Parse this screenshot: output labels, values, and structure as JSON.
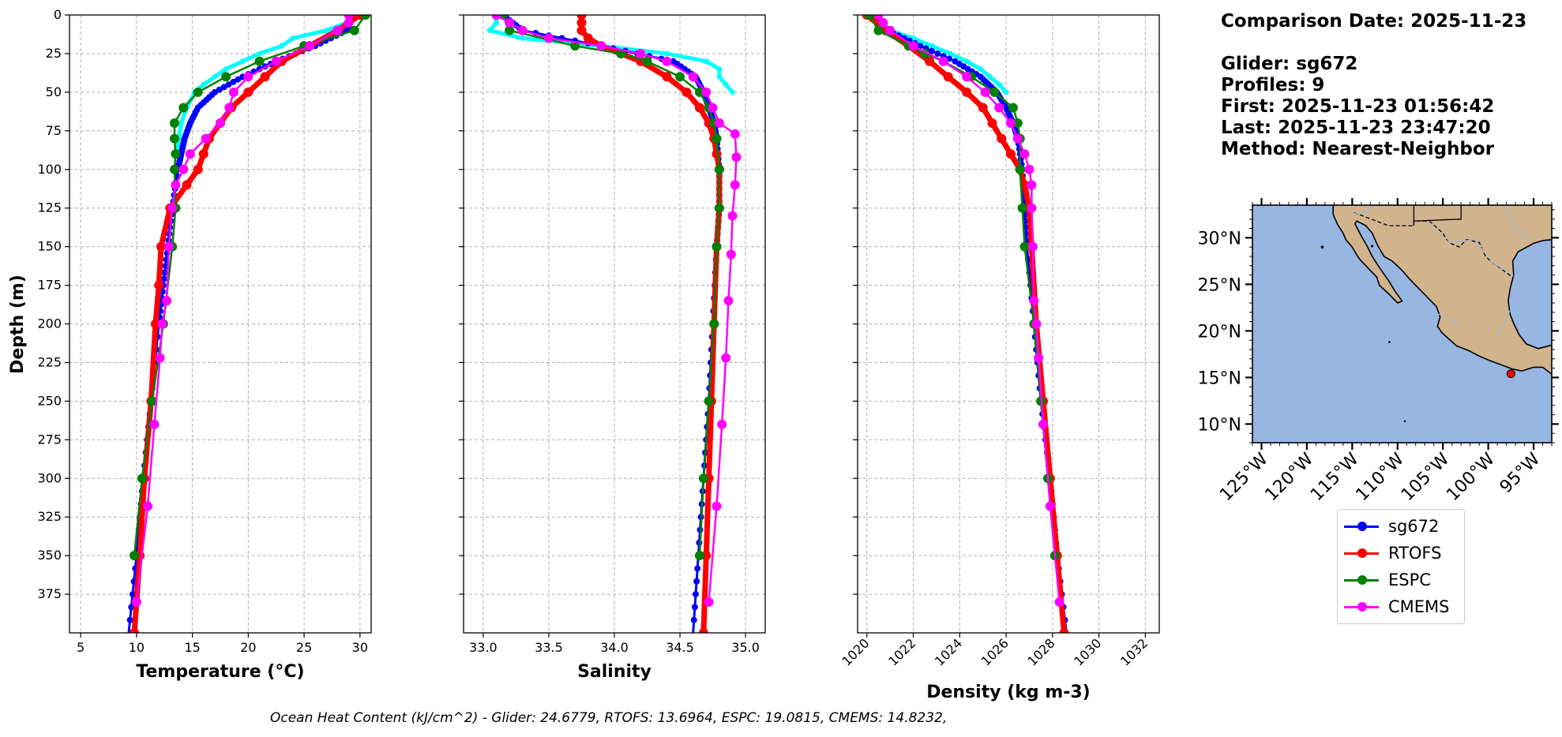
{
  "chart_data": [
    {
      "type": "line",
      "xlabel": "Temperature (°C)",
      "ylabel": "Depth (m)",
      "xlim": [
        4,
        31
      ],
      "ylim": [
        400,
        0
      ],
      "xticks": [
        "5",
        "10",
        "15",
        "20",
        "25",
        "30"
      ],
      "yticks": [
        "0",
        "25",
        "50",
        "75",
        "100",
        "125",
        "150",
        "175",
        "200",
        "225",
        "250",
        "275",
        "300",
        "325",
        "350",
        "375"
      ],
      "grid": true,
      "series": [
        {
          "name": "sg672 (individual profiles)",
          "depth": [
            0,
            5,
            10,
            15,
            20,
            25,
            30,
            35,
            40,
            45,
            50,
            60,
            70,
            80,
            90
          ],
          "values": [
            29.5,
            28.8,
            27.0,
            24.0,
            23.0,
            21.0,
            19.5,
            18.0,
            17.0,
            16.0,
            15.2,
            14.5,
            14.0,
            13.8,
            13.6
          ]
        },
        {
          "name": "sg672",
          "depth": [
            0,
            10,
            20,
            30,
            40,
            50,
            60,
            70,
            80,
            90,
            100,
            125,
            150,
            175,
            200,
            250,
            300,
            350,
            400
          ],
          "values": [
            29.5,
            28.8,
            26.0,
            22.5,
            19.5,
            17.0,
            15.5,
            14.8,
            14.3,
            14.0,
            13.7,
            13.2,
            12.8,
            12.4,
            12.0,
            11.3,
            10.6,
            10.0,
            9.3
          ]
        },
        {
          "name": "RTOFS",
          "depth": [
            0,
            10,
            20,
            30,
            40,
            50,
            60,
            70,
            80,
            90,
            100,
            110,
            125,
            150,
            175,
            200,
            250,
            300,
            350,
            400
          ],
          "values": [
            30.0,
            28.0,
            25.5,
            23.0,
            21.5,
            20.0,
            18.5,
            17.5,
            16.5,
            16.0,
            15.5,
            14.5,
            13.0,
            12.2,
            12.0,
            11.7,
            11.3,
            10.7,
            10.3,
            9.8
          ]
        },
        {
          "name": "ESPC",
          "depth": [
            0,
            10,
            20,
            30,
            40,
            50,
            60,
            70,
            80,
            90,
            100,
            125,
            150,
            200,
            250,
            300,
            350
          ],
          "values": [
            30.5,
            29.5,
            25.0,
            21.0,
            18.0,
            15.5,
            14.2,
            13.4,
            13.4,
            13.5,
            13.4,
            13.5,
            13.2,
            12.4,
            11.4,
            10.5,
            9.8
          ]
        },
        {
          "name": "CMEMS",
          "depth": [
            0,
            5,
            10,
            20,
            30,
            40,
            50,
            60,
            70,
            80,
            90,
            100,
            110,
            125,
            150,
            185,
            200,
            222,
            265,
            318,
            380
          ],
          "values": [
            29.0,
            29.0,
            28.0,
            25.5,
            22.5,
            20.0,
            18.7,
            18.3,
            17.5,
            16.2,
            14.8,
            14.2,
            13.5,
            13.2,
            12.9,
            12.7,
            12.3,
            12.1,
            11.6,
            11.0,
            10.0
          ]
        }
      ]
    },
    {
      "type": "line",
      "xlabel": "Salinity",
      "ylabel": "",
      "xlim": [
        32.85,
        35.15
      ],
      "ylim": [
        400,
        0
      ],
      "xticks": [
        "33.0",
        "33.5",
        "34.0",
        "34.5",
        "35.0"
      ],
      "grid": true,
      "series": [
        {
          "name": "sg672 (individual profiles)",
          "depth": [
            0,
            5,
            10,
            15,
            20,
            25,
            30,
            35,
            40,
            45,
            50
          ],
          "values": [
            33.1,
            33.1,
            33.05,
            33.3,
            33.9,
            34.4,
            34.7,
            34.8,
            34.8,
            34.85,
            34.9
          ]
        },
        {
          "name": "sg672",
          "depth": [
            0,
            10,
            20,
            30,
            40,
            50,
            60,
            70,
            80,
            100,
            125,
            150,
            200,
            250,
            300,
            350,
            400
          ],
          "values": [
            33.15,
            33.3,
            33.9,
            34.45,
            34.62,
            34.68,
            34.72,
            34.76,
            34.78,
            34.8,
            34.8,
            34.78,
            34.75,
            34.72,
            34.68,
            34.64,
            34.6
          ]
        },
        {
          "name": "RTOFS",
          "depth": [
            0,
            5,
            10,
            15,
            20,
            25,
            30,
            40,
            50,
            60,
            70,
            80,
            90,
            100,
            125,
            150,
            200,
            250,
            300,
            350,
            400
          ],
          "values": [
            33.75,
            33.75,
            33.75,
            33.8,
            33.9,
            34.05,
            34.2,
            34.4,
            34.55,
            34.65,
            34.72,
            34.76,
            34.78,
            34.8,
            34.8,
            34.78,
            34.76,
            34.74,
            34.72,
            34.7,
            34.68
          ]
        },
        {
          "name": "ESPC",
          "depth": [
            0,
            10,
            20,
            25,
            30,
            40,
            50,
            60,
            70,
            80,
            100,
            125,
            150,
            200,
            250,
            300,
            350
          ],
          "values": [
            33.15,
            33.2,
            33.7,
            34.05,
            34.25,
            34.5,
            34.65,
            34.72,
            34.76,
            34.78,
            34.8,
            34.8,
            34.78,
            34.76,
            34.72,
            34.68,
            34.65
          ]
        },
        {
          "name": "CMEMS",
          "depth": [
            0,
            5,
            10,
            15,
            20,
            25,
            30,
            40,
            50,
            60,
            70,
            77,
            92,
            110,
            130,
            155,
            185,
            222,
            265,
            318,
            380
          ],
          "values": [
            33.1,
            33.2,
            33.3,
            33.5,
            33.9,
            34.2,
            34.4,
            34.6,
            34.7,
            34.75,
            34.8,
            34.92,
            34.93,
            34.92,
            34.9,
            34.89,
            34.87,
            34.85,
            34.82,
            34.78,
            34.72
          ]
        }
      ]
    },
    {
      "type": "line",
      "xlabel": "Density (kg m-3)",
      "ylabel": "",
      "xlim": [
        1019.6,
        1032.6
      ],
      "ylim": [
        400,
        0
      ],
      "xticks": [
        "1020",
        "1022",
        "1024",
        "1026",
        "1028",
        "1030",
        "1032"
      ],
      "grid": true,
      "series": [
        {
          "name": "sg672 (individual profiles)",
          "depth": [
            0,
            5,
            10,
            15,
            20,
            25,
            30,
            35,
            40,
            45,
            50
          ],
          "values": [
            1020.4,
            1020.6,
            1021.0,
            1022.0,
            1022.8,
            1023.6,
            1024.3,
            1024.9,
            1025.3,
            1025.7,
            1026.0
          ]
        },
        {
          "name": "sg672",
          "depth": [
            0,
            10,
            20,
            30,
            40,
            50,
            60,
            70,
            80,
            100,
            125,
            150,
            200,
            250,
            300,
            350,
            400
          ],
          "values": [
            1020.3,
            1020.9,
            1022.3,
            1023.8,
            1024.9,
            1025.6,
            1026.0,
            1026.3,
            1026.5,
            1026.7,
            1026.8,
            1026.9,
            1027.2,
            1027.5,
            1027.9,
            1028.2,
            1028.6
          ]
        },
        {
          "name": "RTOFS",
          "depth": [
            0,
            10,
            20,
            30,
            40,
            50,
            60,
            70,
            80,
            90,
            100,
            110,
            125,
            150,
            200,
            250,
            300,
            350,
            400
          ],
          "values": [
            1020.0,
            1020.8,
            1021.8,
            1022.7,
            1023.5,
            1024.3,
            1025.0,
            1025.4,
            1025.8,
            1026.2,
            1026.6,
            1026.8,
            1027.0,
            1027.1,
            1027.3,
            1027.6,
            1027.9,
            1028.2,
            1028.5
          ]
        },
        {
          "name": "ESPC",
          "depth": [
            0,
            10,
            20,
            25,
            30,
            40,
            50,
            60,
            70,
            80,
            100,
            125,
            150,
            200,
            250,
            300,
            350
          ],
          "values": [
            1020.1,
            1020.5,
            1021.8,
            1022.5,
            1023.3,
            1024.5,
            1025.5,
            1026.3,
            1026.5,
            1026.6,
            1026.6,
            1026.7,
            1026.8,
            1027.2,
            1027.5,
            1027.8,
            1028.1
          ]
        },
        {
          "name": "CMEMS",
          "depth": [
            0,
            5,
            10,
            20,
            30,
            40,
            50,
            60,
            70,
            80,
            90,
            100,
            110,
            125,
            150,
            185,
            200,
            222,
            265,
            318,
            380
          ],
          "values": [
            1020.5,
            1020.7,
            1021.0,
            1022.0,
            1023.3,
            1024.3,
            1025.1,
            1025.7,
            1026.2,
            1026.5,
            1026.8,
            1027.0,
            1027.1,
            1027.1,
            1027.15,
            1027.2,
            1027.3,
            1027.4,
            1027.6,
            1027.9,
            1028.3
          ]
        }
      ]
    },
    {
      "type": "map",
      "title": "",
      "lat_ticks": [
        "30°N",
        "25°N",
        "20°N",
        "15°N",
        "10°N"
      ],
      "lon_ticks": [
        "125°W",
        "120°W",
        "115°W",
        "110°W",
        "105°W",
        "100°W",
        "95°W"
      ],
      "extent": {
        "lon_min": -126,
        "lon_max": -93,
        "lat_min": 8,
        "lat_max": 33.5
      },
      "glider_position": {
        "lon": -97.5,
        "lat": 15.4
      }
    }
  ],
  "info": {
    "comparison_date": "Comparison Date: 2025-11-23",
    "glider": "Glider: sg672",
    "profiles": "Profiles: 9",
    "first": "First: 2025-11-23 01:56:42",
    "last": "Last: 2025-11-23 23:47:20",
    "method": "Method: Nearest-Neighbor"
  },
  "legend": [
    {
      "label": "sg672",
      "color": "#0000ff"
    },
    {
      "label": "RTOFS",
      "color": "#ff0000"
    },
    {
      "label": "ESPC",
      "color": "#008000"
    },
    {
      "label": "CMEMS",
      "color": "#ff00ff"
    }
  ],
  "colors": {
    "individual": "#00ffff",
    "sg672": "#0000ff",
    "RTOFS": "#ff0000",
    "ESPC": "#008000",
    "CMEMS": "#ff00ff",
    "ocean": "#98b6e2",
    "land": "#d2b48c"
  },
  "ohc_text": "Ocean Heat Content (kJ/cm^2) - Glider: 24.6779,  RTOFS: 13.6964,  ESPC: 19.0815,  CMEMS: 14.8232,"
}
